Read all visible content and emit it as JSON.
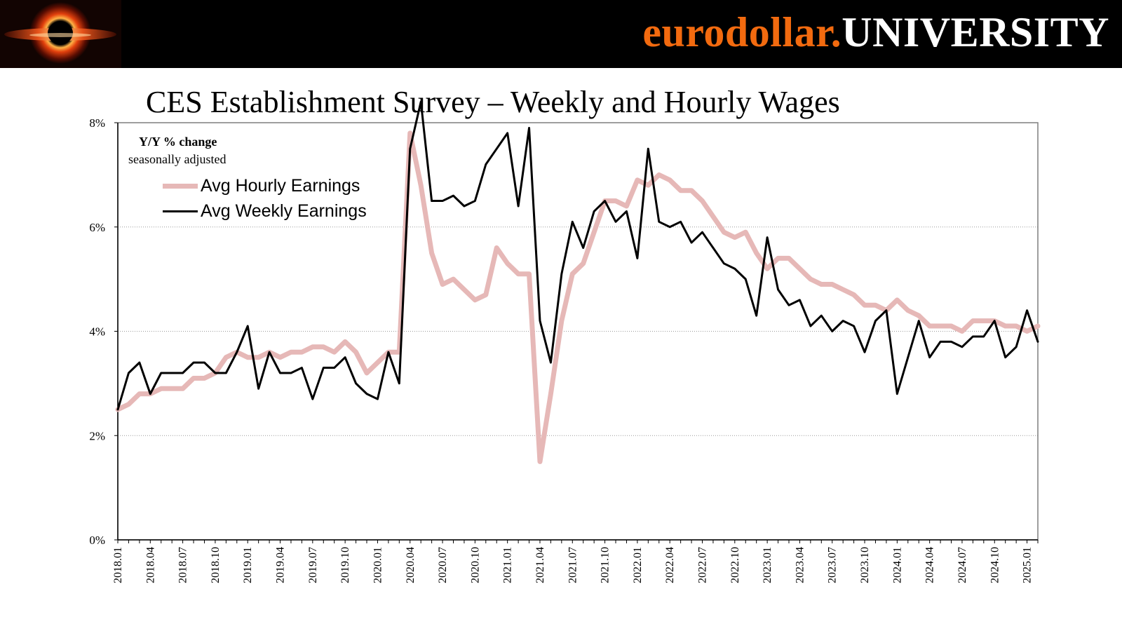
{
  "header": {
    "brand_part1": "eurodollar.",
    "brand_part2": "UNIVERSITY",
    "logo_icon": "black-hole-icon",
    "colors": {
      "background": "#000000",
      "brand_orange": "#f26a0f",
      "brand_white": "#ffffff"
    }
  },
  "chart_data": {
    "type": "line",
    "title": "CES Establishment Survey – Weekly and Hourly Wages",
    "annotation_bold": "Y/Y % change",
    "annotation": "seasonally adjusted",
    "xlabel": "",
    "ylabel": "",
    "ylim": [
      0,
      8
    ],
    "yticks": [
      0,
      2,
      4,
      6,
      8
    ],
    "ytick_labels": [
      "0%",
      "2%",
      "4%",
      "6%",
      "8%"
    ],
    "grid": "horizontal dotted",
    "legend_position": "top-left",
    "x_start": "2018.01",
    "x_end": "2025.03",
    "x_tick_labels": [
      "2018.01",
      "2018.04",
      "2018.07",
      "2018.10",
      "2019.01",
      "2019.04",
      "2019.07",
      "2019.10",
      "2020.01",
      "2020.04",
      "2020.07",
      "2020.10",
      "2021.01",
      "2021.04",
      "2021.07",
      "2021.10",
      "2022.01",
      "2022.04",
      "2022.07",
      "2022.10",
      "2023.01",
      "2023.04",
      "2023.07",
      "2023.10",
      "2024.01",
      "2024.04",
      "2024.07",
      "2024.10",
      "2025.01"
    ],
    "series": [
      {
        "name": "Avg Hourly Earnings",
        "color": "#e6b8b7",
        "values": [
          2.5,
          2.6,
          2.8,
          2.8,
          2.9,
          2.9,
          2.9,
          3.1,
          3.1,
          3.2,
          3.5,
          3.6,
          3.5,
          3.5,
          3.6,
          3.5,
          3.6,
          3.6,
          3.7,
          3.7,
          3.6,
          3.8,
          3.6,
          3.2,
          3.4,
          3.6,
          3.6,
          7.8,
          6.8,
          5.5,
          4.9,
          5.0,
          4.8,
          4.6,
          4.7,
          5.6,
          5.3,
          5.1,
          5.1,
          1.5,
          2.8,
          4.2,
          5.1,
          5.3,
          5.9,
          6.5,
          6.5,
          6.4,
          6.9,
          6.8,
          7.0,
          6.9,
          6.7,
          6.7,
          6.5,
          6.2,
          5.9,
          5.8,
          5.9,
          5.5,
          5.2,
          5.4,
          5.4,
          5.2,
          5.0,
          4.9,
          4.9,
          4.8,
          4.7,
          4.5,
          4.5,
          4.4,
          4.6,
          4.4,
          4.3,
          4.1,
          4.1,
          4.1,
          4.0,
          4.2,
          4.2,
          4.2,
          4.1,
          4.1,
          4.0,
          4.1
        ]
      },
      {
        "name": "Avg Weekly Earnings",
        "color": "#000000",
        "values": [
          2.5,
          3.2,
          3.4,
          2.8,
          3.2,
          3.2,
          3.2,
          3.4,
          3.4,
          3.2,
          3.2,
          3.6,
          4.1,
          2.9,
          3.6,
          3.2,
          3.2,
          3.3,
          2.7,
          3.3,
          3.3,
          3.5,
          3.0,
          2.8,
          2.7,
          3.6,
          3.0,
          7.5,
          8.4,
          6.5,
          6.5,
          6.6,
          6.4,
          6.5,
          7.2,
          7.5,
          7.8,
          6.4,
          7.9,
          4.2,
          3.4,
          5.1,
          6.1,
          5.6,
          6.3,
          6.5,
          6.1,
          6.3,
          5.4,
          7.5,
          6.1,
          6.0,
          6.1,
          5.7,
          5.9,
          5.6,
          5.3,
          5.2,
          5.0,
          4.3,
          5.8,
          4.8,
          4.5,
          4.6,
          4.1,
          4.3,
          4.0,
          4.2,
          4.1,
          3.6,
          4.2,
          4.4,
          2.8,
          3.5,
          4.2,
          3.5,
          3.8,
          3.8,
          3.7,
          3.9,
          3.9,
          4.2,
          3.5,
          3.7,
          4.4,
          3.8
        ]
      }
    ]
  }
}
